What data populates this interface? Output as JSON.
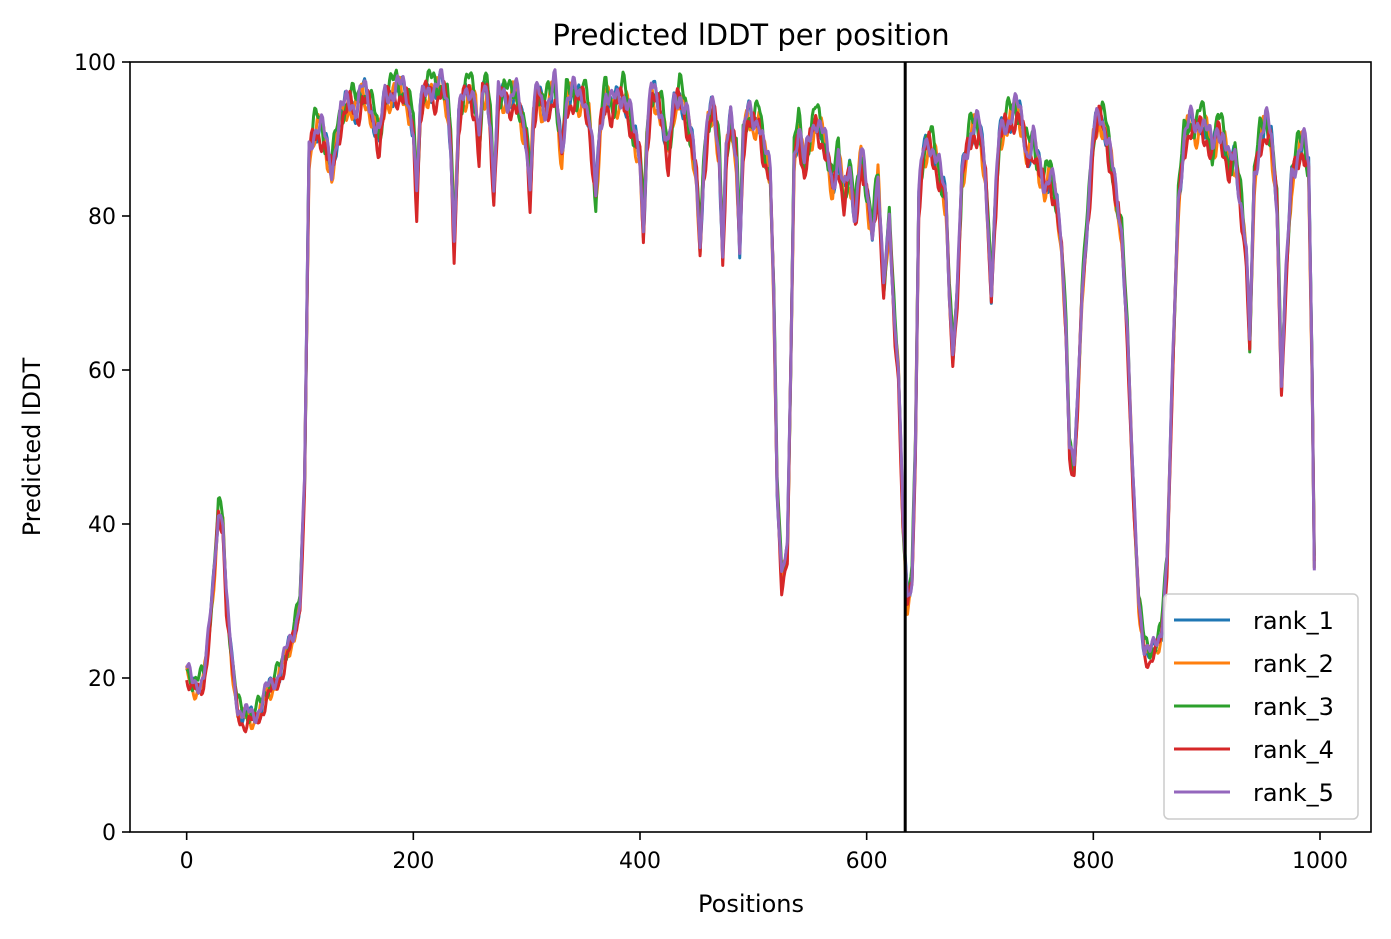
{
  "chart_data": {
    "type": "line",
    "title": "Predicted lDDT per position",
    "xlabel": "Positions",
    "ylabel": "Predicted lDDT",
    "xlim": [
      -50,
      1045
    ],
    "ylim": [
      0,
      100
    ],
    "xticks": [
      0,
      200,
      400,
      600,
      800,
      1000
    ],
    "yticks": [
      0,
      20,
      40,
      60,
      80,
      100
    ],
    "vline": {
      "x": 634,
      "color": "#000000"
    },
    "grid": false,
    "legend_position": "lower-right",
    "anchors": [
      [
        0,
        21
      ],
      [
        5,
        19
      ],
      [
        10,
        19
      ],
      [
        15,
        20
      ],
      [
        20,
        26
      ],
      [
        25,
        35
      ],
      [
        28,
        42
      ],
      [
        32,
        40
      ],
      [
        35,
        30
      ],
      [
        40,
        22
      ],
      [
        45,
        16
      ],
      [
        50,
        15
      ],
      [
        55,
        15
      ],
      [
        60,
        15
      ],
      [
        65,
        16
      ],
      [
        70,
        18
      ],
      [
        75,
        19
      ],
      [
        80,
        20
      ],
      [
        85,
        22
      ],
      [
        90,
        24
      ],
      [
        95,
        26
      ],
      [
        100,
        30
      ],
      [
        104,
        45
      ],
      [
        108,
        88
      ],
      [
        112,
        91
      ],
      [
        116,
        92
      ],
      [
        120,
        91
      ],
      [
        124,
        88
      ],
      [
        128,
        86
      ],
      [
        132,
        90
      ],
      [
        136,
        93
      ],
      [
        140,
        94
      ],
      [
        145,
        95
      ],
      [
        150,
        94
      ],
      [
        155,
        96
      ],
      [
        160,
        95
      ],
      [
        165,
        93
      ],
      [
        170,
        90
      ],
      [
        175,
        95
      ],
      [
        180,
        96
      ],
      [
        185,
        97
      ],
      [
        190,
        96
      ],
      [
        195,
        95
      ],
      [
        200,
        92
      ],
      [
        203,
        82
      ],
      [
        206,
        93
      ],
      [
        210,
        96
      ],
      [
        215,
        97
      ],
      [
        220,
        96
      ],
      [
        225,
        97
      ],
      [
        230,
        95
      ],
      [
        233,
        90
      ],
      [
        236,
        76
      ],
      [
        240,
        92
      ],
      [
        245,
        96
      ],
      [
        250,
        97
      ],
      [
        255,
        94
      ],
      [
        258,
        88
      ],
      [
        261,
        96
      ],
      [
        265,
        97
      ],
      [
        268,
        92
      ],
      [
        271,
        83
      ],
      [
        275,
        95
      ],
      [
        280,
        96
      ],
      [
        285,
        95
      ],
      [
        290,
        96
      ],
      [
        295,
        93
      ],
      [
        300,
        90
      ],
      [
        303,
        83
      ],
      [
        306,
        93
      ],
      [
        310,
        96
      ],
      [
        315,
        94
      ],
      [
        320,
        95
      ],
      [
        325,
        97
      ],
      [
        328,
        92
      ],
      [
        331,
        88
      ],
      [
        335,
        95
      ],
      [
        340,
        96
      ],
      [
        345,
        95
      ],
      [
        350,
        96
      ],
      [
        355,
        93
      ],
      [
        358,
        88
      ],
      [
        361,
        82
      ],
      [
        365,
        92
      ],
      [
        370,
        96
      ],
      [
        375,
        94
      ],
      [
        380,
        95
      ],
      [
        385,
        96
      ],
      [
        390,
        94
      ],
      [
        395,
        90
      ],
      [
        400,
        88
      ],
      [
        403,
        78
      ],
      [
        406,
        90
      ],
      [
        410,
        96
      ],
      [
        415,
        95
      ],
      [
        420,
        93
      ],
      [
        425,
        88
      ],
      [
        430,
        94
      ],
      [
        435,
        96
      ],
      [
        440,
        94
      ],
      [
        445,
        90
      ],
      [
        450,
        85
      ],
      [
        453,
        76
      ],
      [
        456,
        86
      ],
      [
        460,
        92
      ],
      [
        465,
        94
      ],
      [
        470,
        88
      ],
      [
        473,
        75
      ],
      [
        476,
        88
      ],
      [
        480,
        92
      ],
      [
        485,
        88
      ],
      [
        488,
        76
      ],
      [
        491,
        90
      ],
      [
        495,
        93
      ],
      [
        500,
        92
      ],
      [
        505,
        93
      ],
      [
        510,
        88
      ],
      [
        515,
        85
      ],
      [
        518,
        70
      ],
      [
        521,
        45
      ],
      [
        525,
        33
      ],
      [
        530,
        36
      ],
      [
        533,
        60
      ],
      [
        536,
        88
      ],
      [
        540,
        92
      ],
      [
        545,
        86
      ],
      [
        550,
        90
      ],
      [
        555,
        93
      ],
      [
        560,
        91
      ],
      [
        565,
        88
      ],
      [
        570,
        84
      ],
      [
        575,
        88
      ],
      [
        580,
        82
      ],
      [
        585,
        86
      ],
      [
        590,
        80
      ],
      [
        595,
        88
      ],
      [
        600,
        83
      ],
      [
        605,
        78
      ],
      [
        610,
        85
      ],
      [
        615,
        70
      ],
      [
        620,
        80
      ],
      [
        625,
        65
      ],
      [
        628,
        60
      ],
      [
        632,
        40
      ],
      [
        636,
        30
      ],
      [
        640,
        33
      ],
      [
        643,
        50
      ],
      [
        646,
        82
      ],
      [
        650,
        88
      ],
      [
        655,
        90
      ],
      [
        660,
        88
      ],
      [
        665,
        85
      ],
      [
        670,
        82
      ],
      [
        673,
        70
      ],
      [
        676,
        62
      ],
      [
        680,
        70
      ],
      [
        684,
        85
      ],
      [
        690,
        90
      ],
      [
        695,
        92
      ],
      [
        700,
        91
      ],
      [
        705,
        85
      ],
      [
        710,
        70
      ],
      [
        713,
        80
      ],
      [
        717,
        90
      ],
      [
        722,
        92
      ],
      [
        727,
        93
      ],
      [
        732,
        94
      ],
      [
        737,
        92
      ],
      [
        742,
        88
      ],
      [
        747,
        90
      ],
      [
        752,
        86
      ],
      [
        757,
        84
      ],
      [
        762,
        86
      ],
      [
        767,
        82
      ],
      [
        772,
        76
      ],
      [
        776,
        65
      ],
      [
        779,
        50
      ],
      [
        783,
        47
      ],
      [
        786,
        55
      ],
      [
        790,
        70
      ],
      [
        795,
        80
      ],
      [
        800,
        90
      ],
      [
        805,
        93
      ],
      [
        810,
        92
      ],
      [
        815,
        88
      ],
      [
        820,
        82
      ],
      [
        825,
        78
      ],
      [
        830,
        65
      ],
      [
        835,
        45
      ],
      [
        840,
        30
      ],
      [
        845,
        24
      ],
      [
        850,
        23
      ],
      [
        855,
        24
      ],
      [
        860,
        26
      ],
      [
        865,
        35
      ],
      [
        870,
        60
      ],
      [
        875,
        82
      ],
      [
        880,
        90
      ],
      [
        885,
        92
      ],
      [
        890,
        91
      ],
      [
        895,
        93
      ],
      [
        900,
        91
      ],
      [
        905,
        88
      ],
      [
        910,
        92
      ],
      [
        915,
        90
      ],
      [
        920,
        86
      ],
      [
        925,
        88
      ],
      [
        930,
        82
      ],
      [
        935,
        75
      ],
      [
        938,
        63
      ],
      [
        942,
        85
      ],
      [
        947,
        90
      ],
      [
        952,
        92
      ],
      [
        957,
        90
      ],
      [
        962,
        82
      ],
      [
        966,
        58
      ],
      [
        970,
        72
      ],
      [
        975,
        85
      ],
      [
        980,
        88
      ],
      [
        985,
        90
      ],
      [
        990,
        86
      ],
      [
        993,
        60
      ],
      [
        995,
        35
      ]
    ],
    "series": [
      {
        "name": "rank_1",
        "color": "#1f77b4",
        "offset": 0.0
      },
      {
        "name": "rank_2",
        "color": "#ff7f0e",
        "offset": -0.4
      },
      {
        "name": "rank_3",
        "color": "#2ca02c",
        "offset": 0.6
      },
      {
        "name": "rank_4",
        "color": "#d62728",
        "offset": -0.8
      },
      {
        "name": "rank_5",
        "color": "#9467bd",
        "offset": 0.3
      }
    ]
  }
}
